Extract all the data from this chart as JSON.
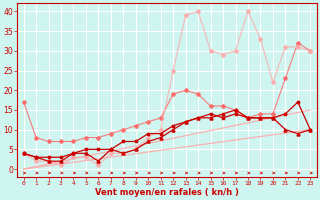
{
  "x": [
    0,
    1,
    2,
    3,
    4,
    5,
    6,
    7,
    8,
    9,
    10,
    11,
    12,
    13,
    14,
    15,
    16,
    17,
    18,
    19,
    20,
    21,
    22,
    23
  ],
  "line_dark1": [
    4,
    3,
    2,
    2,
    4,
    4,
    2,
    5,
    4,
    5,
    7,
    8,
    10,
    12,
    13,
    13,
    14,
    15,
    13,
    13,
    13,
    10,
    9,
    10
  ],
  "line_dark2": [
    4,
    3,
    3,
    3,
    4,
    5,
    5,
    5,
    7,
    7,
    9,
    9,
    11,
    12,
    13,
    14,
    13,
    14,
    13,
    13,
    13,
    14,
    17,
    10
  ],
  "line_med1": [
    17,
    8,
    7,
    7,
    7,
    8,
    8,
    9,
    10,
    11,
    12,
    13,
    19,
    20,
    19,
    16,
    16,
    15,
    13,
    14,
    14,
    23,
    32,
    30
  ],
  "line_med2": [
    4,
    2,
    2,
    1,
    3,
    3,
    1,
    4,
    4,
    5,
    8,
    10,
    25,
    39,
    40,
    30,
    29,
    30,
    40,
    33,
    22,
    31,
    31,
    30
  ],
  "line_light1": [
    0,
    0.43,
    0.87,
    1.3,
    1.74,
    2.17,
    2.6,
    3.04,
    3.48,
    3.91,
    4.35,
    4.78,
    5.22,
    5.65,
    6.09,
    6.52,
    6.96,
    7.39,
    7.83,
    8.26,
    8.7,
    9.13,
    9.57,
    10.0
  ],
  "line_light2": [
    0,
    0.65,
    1.3,
    1.96,
    2.61,
    3.26,
    3.91,
    4.57,
    5.22,
    5.87,
    6.52,
    7.17,
    7.83,
    8.48,
    9.13,
    9.78,
    10.43,
    11.09,
    11.74,
    12.39,
    13.04,
    13.7,
    14.35,
    15.0
  ],
  "bg_color": "#cef5f0",
  "grid_color": "#ffffff",
  "color_dark_red": "#cc0000",
  "color_med_red": "#ff6666",
  "color_light_red": "#ffaaaa",
  "xlabel": "Vent moyen/en rafales ( kn/h )",
  "ylim": [
    -2,
    42
  ],
  "xlim": [
    -0.5,
    23.5
  ],
  "yticks": [
    0,
    5,
    10,
    15,
    20,
    25,
    30,
    35,
    40
  ]
}
